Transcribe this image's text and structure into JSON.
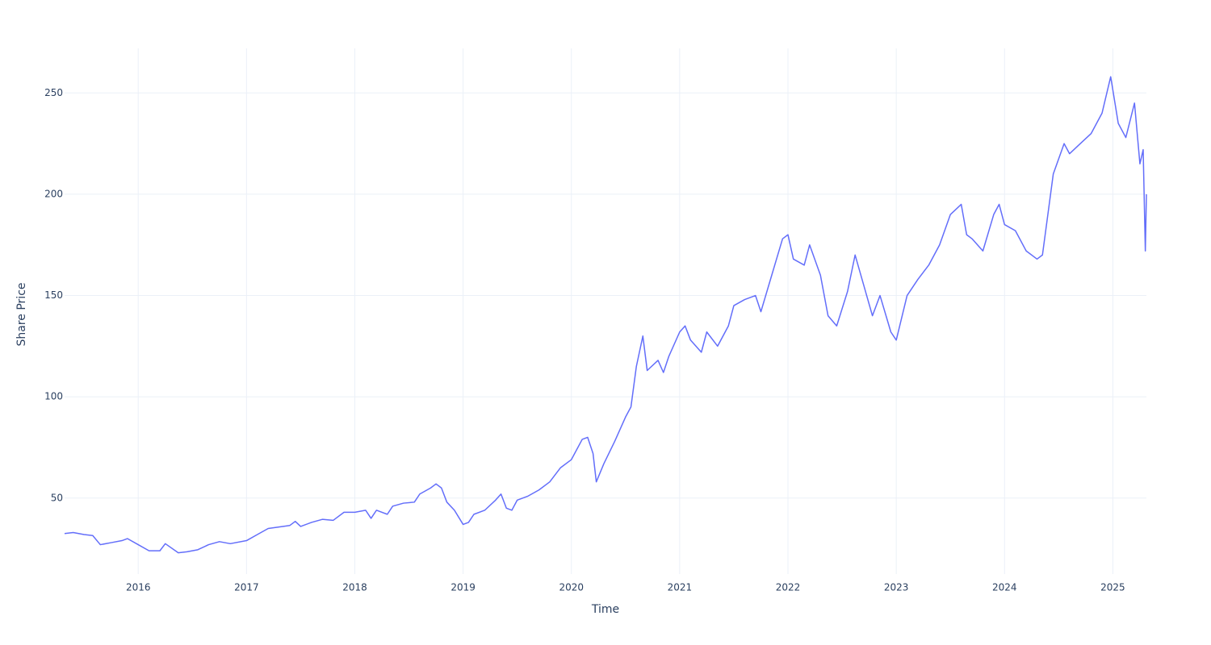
{
  "chart_data": {
    "type": "line",
    "x_label": "Time",
    "y_label": "Share Price",
    "color": "#636efa",
    "grid": true,
    "xlim": [
      2015.32,
      2025.31
    ],
    "xticks": [
      2016,
      2017,
      2018,
      2019,
      2020,
      2021,
      2022,
      2023,
      2024,
      2025
    ],
    "ylim": [
      12.5,
      272
    ],
    "yticks": [
      50,
      100,
      150,
      200,
      250
    ],
    "x": [
      2015.32,
      2015.4,
      2015.5,
      2015.58,
      2015.65,
      2015.75,
      2015.85,
      2015.9,
      2016.0,
      2016.1,
      2016.2,
      2016.25,
      2016.37,
      2016.45,
      2016.55,
      2016.65,
      2016.75,
      2016.85,
      2017.0,
      2017.1,
      2017.2,
      2017.4,
      2017.45,
      2017.5,
      2017.6,
      2017.7,
      2017.8,
      2017.9,
      2018.0,
      2018.1,
      2018.15,
      2018.2,
      2018.3,
      2018.35,
      2018.45,
      2018.55,
      2018.6,
      2018.7,
      2018.75,
      2018.8,
      2018.85,
      2018.92,
      2019.0,
      2019.05,
      2019.1,
      2019.2,
      2019.3,
      2019.35,
      2019.4,
      2019.45,
      2019.5,
      2019.6,
      2019.7,
      2019.8,
      2019.9,
      2020.0,
      2020.1,
      2020.15,
      2020.2,
      2020.23,
      2020.3,
      2020.4,
      2020.5,
      2020.55,
      2020.6,
      2020.66,
      2020.7,
      2020.8,
      2020.85,
      2020.9,
      2021.0,
      2021.05,
      2021.1,
      2021.2,
      2021.25,
      2021.35,
      2021.45,
      2021.5,
      2021.6,
      2021.7,
      2021.75,
      2021.85,
      2021.95,
      2022.0,
      2022.05,
      2022.15,
      2022.2,
      2022.3,
      2022.37,
      2022.45,
      2022.55,
      2022.62,
      2022.7,
      2022.78,
      2022.85,
      2022.95,
      2023.0,
      2023.1,
      2023.2,
      2023.3,
      2023.4,
      2023.5,
      2023.6,
      2023.65,
      2023.7,
      2023.8,
      2023.9,
      2023.95,
      2024.0,
      2024.1,
      2024.2,
      2024.3,
      2024.35,
      2024.45,
      2024.55,
      2024.6,
      2024.7,
      2024.8,
      2024.9,
      2024.98,
      2025.05,
      2025.12,
      2025.2,
      2025.25,
      2025.28,
      2025.3,
      2025.31
    ],
    "values": [
      32.5,
      33,
      32,
      31.5,
      27,
      28,
      29,
      30,
      27,
      24,
      24,
      27.5,
      23,
      23.5,
      24.5,
      27,
      28.5,
      27.5,
      29,
      32,
      35,
      36.5,
      38.5,
      36,
      38,
      39.5,
      39,
      43,
      43,
      44,
      40,
      44,
      42,
      46,
      47.5,
      48,
      52,
      55,
      57,
      55,
      48,
      44,
      37,
      38,
      42,
      44,
      49,
      52,
      45,
      44,
      49,
      51,
      54,
      58,
      65,
      69,
      79,
      80,
      72,
      58,
      67,
      78,
      90,
      95,
      115,
      130,
      113,
      118,
      112,
      120,
      132,
      135,
      128,
      122,
      132,
      125,
      135,
      145,
      148,
      150,
      142,
      160,
      178,
      180,
      168,
      165,
      175,
      160,
      140,
      135,
      152,
      170,
      155,
      140,
      150,
      132,
      128,
      150,
      158,
      165,
      175,
      190,
      195,
      180,
      178,
      172,
      190,
      195,
      185,
      182,
      172,
      168,
      170,
      210,
      225,
      220,
      225,
      230,
      240,
      258,
      235,
      228,
      245,
      215,
      222,
      172,
      200
    ]
  }
}
